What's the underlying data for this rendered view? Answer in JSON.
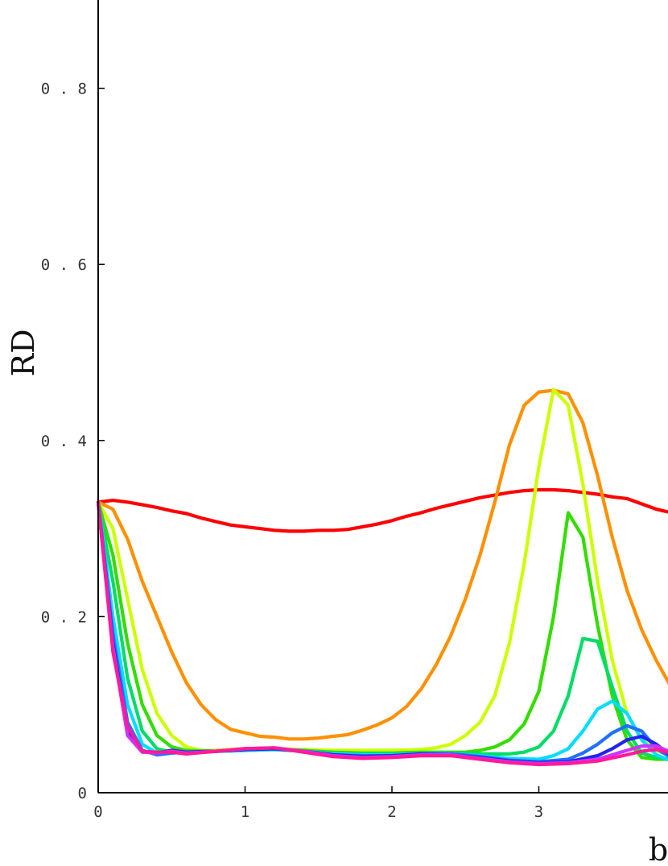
{
  "chart_data": {
    "type": "line",
    "title": "",
    "xlabel": "b",
    "ylabel": "RD",
    "xlim": [
      0,
      4.0
    ],
    "ylim": [
      0,
      1.0
    ],
    "x_ticks": [
      "0",
      "1",
      "2",
      "3"
    ],
    "y_ticks": [
      "0",
      "0.2",
      "0.4",
      "0.6",
      "0.8"
    ],
    "grid": false,
    "legend": "none",
    "series": [
      {
        "color": "#ff0000",
        "points": [
          [
            0,
            0.33
          ],
          [
            0.1,
            0.332
          ],
          [
            0.2,
            0.33
          ],
          [
            0.3,
            0.327
          ],
          [
            0.4,
            0.324
          ],
          [
            0.5,
            0.32
          ],
          [
            0.6,
            0.317
          ],
          [
            0.7,
            0.312
          ],
          [
            0.8,
            0.308
          ],
          [
            0.9,
            0.304
          ],
          [
            1.0,
            0.302
          ],
          [
            1.1,
            0.3
          ],
          [
            1.2,
            0.298
          ],
          [
            1.3,
            0.297
          ],
          [
            1.4,
            0.297
          ],
          [
            1.5,
            0.298
          ],
          [
            1.6,
            0.298
          ],
          [
            1.7,
            0.299
          ],
          [
            1.8,
            0.302
          ],
          [
            1.9,
            0.305
          ],
          [
            2.0,
            0.309
          ],
          [
            2.1,
            0.314
          ],
          [
            2.2,
            0.318
          ],
          [
            2.3,
            0.323
          ],
          [
            2.4,
            0.327
          ],
          [
            2.5,
            0.331
          ],
          [
            2.6,
            0.335
          ],
          [
            2.7,
            0.338
          ],
          [
            2.8,
            0.341
          ],
          [
            2.9,
            0.343
          ],
          [
            3.0,
            0.344
          ],
          [
            3.1,
            0.344
          ],
          [
            3.2,
            0.343
          ],
          [
            3.3,
            0.341
          ],
          [
            3.4,
            0.339
          ],
          [
            3.5,
            0.336
          ],
          [
            3.6,
            0.334
          ],
          [
            3.7,
            0.328
          ],
          [
            3.8,
            0.322
          ],
          [
            3.9,
            0.318
          ],
          [
            4.0,
            0.315
          ]
        ]
      },
      {
        "color": "#ff9000",
        "points": [
          [
            0,
            0.33
          ],
          [
            0.1,
            0.322
          ],
          [
            0.2,
            0.288
          ],
          [
            0.3,
            0.24
          ],
          [
            0.4,
            0.2
          ],
          [
            0.5,
            0.16
          ],
          [
            0.6,
            0.125
          ],
          [
            0.7,
            0.1
          ],
          [
            0.8,
            0.083
          ],
          [
            0.9,
            0.072
          ],
          [
            1.0,
            0.068
          ],
          [
            1.1,
            0.064
          ],
          [
            1.2,
            0.063
          ],
          [
            1.3,
            0.061
          ],
          [
            1.4,
            0.061
          ],
          [
            1.5,
            0.062
          ],
          [
            1.6,
            0.064
          ],
          [
            1.7,
            0.066
          ],
          [
            1.8,
            0.071
          ],
          [
            1.9,
            0.077
          ],
          [
            2.0,
            0.085
          ],
          [
            2.1,
            0.098
          ],
          [
            2.2,
            0.118
          ],
          [
            2.3,
            0.145
          ],
          [
            2.4,
            0.178
          ],
          [
            2.5,
            0.22
          ],
          [
            2.6,
            0.27
          ],
          [
            2.7,
            0.33
          ],
          [
            2.8,
            0.395
          ],
          [
            2.9,
            0.44
          ],
          [
            3.0,
            0.455
          ],
          [
            3.1,
            0.457
          ],
          [
            3.2,
            0.453
          ],
          [
            3.3,
            0.42
          ],
          [
            3.4,
            0.36
          ],
          [
            3.5,
            0.29
          ],
          [
            3.6,
            0.23
          ],
          [
            3.7,
            0.185
          ],
          [
            3.8,
            0.15
          ],
          [
            3.9,
            0.12
          ],
          [
            4.0,
            0.1
          ]
        ]
      },
      {
        "color": "#ccff00",
        "points": [
          [
            0,
            0.33
          ],
          [
            0.1,
            0.3
          ],
          [
            0.2,
            0.22
          ],
          [
            0.3,
            0.14
          ],
          [
            0.4,
            0.09
          ],
          [
            0.5,
            0.065
          ],
          [
            0.6,
            0.052
          ],
          [
            0.7,
            0.048
          ],
          [
            0.8,
            0.048
          ],
          [
            0.9,
            0.049
          ],
          [
            1.0,
            0.05
          ],
          [
            1.2,
            0.05
          ],
          [
            1.4,
            0.049
          ],
          [
            1.6,
            0.048
          ],
          [
            1.8,
            0.048
          ],
          [
            2.0,
            0.048
          ],
          [
            2.2,
            0.049
          ],
          [
            2.3,
            0.051
          ],
          [
            2.4,
            0.055
          ],
          [
            2.5,
            0.065
          ],
          [
            2.6,
            0.08
          ],
          [
            2.7,
            0.11
          ],
          [
            2.8,
            0.17
          ],
          [
            2.9,
            0.26
          ],
          [
            3.0,
            0.37
          ],
          [
            3.1,
            0.458
          ],
          [
            3.2,
            0.44
          ],
          [
            3.3,
            0.35
          ],
          [
            3.4,
            0.24
          ],
          [
            3.5,
            0.15
          ],
          [
            3.6,
            0.09
          ],
          [
            3.7,
            0.06
          ],
          [
            3.8,
            0.048
          ],
          [
            3.9,
            0.042
          ],
          [
            4.0,
            0.04
          ]
        ]
      },
      {
        "color": "#33dd00",
        "points": [
          [
            0,
            0.33
          ],
          [
            0.1,
            0.27
          ],
          [
            0.2,
            0.17
          ],
          [
            0.3,
            0.1
          ],
          [
            0.4,
            0.065
          ],
          [
            0.5,
            0.052
          ],
          [
            0.6,
            0.048
          ],
          [
            0.8,
            0.047
          ],
          [
            1.0,
            0.048
          ],
          [
            1.2,
            0.049
          ],
          [
            1.4,
            0.048
          ],
          [
            1.6,
            0.046
          ],
          [
            1.8,
            0.045
          ],
          [
            2.0,
            0.045
          ],
          [
            2.2,
            0.046
          ],
          [
            2.4,
            0.046
          ],
          [
            2.5,
            0.046
          ],
          [
            2.6,
            0.048
          ],
          [
            2.7,
            0.052
          ],
          [
            2.8,
            0.06
          ],
          [
            2.9,
            0.078
          ],
          [
            3.0,
            0.115
          ],
          [
            3.1,
            0.2
          ],
          [
            3.2,
            0.318
          ],
          [
            3.3,
            0.29
          ],
          [
            3.4,
            0.19
          ],
          [
            3.5,
            0.11
          ],
          [
            3.6,
            0.06
          ],
          [
            3.7,
            0.04
          ],
          [
            3.8,
            0.038
          ],
          [
            3.9,
            0.038
          ],
          [
            4.0,
            0.037
          ]
        ]
      },
      {
        "color": "#00dd66",
        "points": [
          [
            0,
            0.33
          ],
          [
            0.1,
            0.24
          ],
          [
            0.2,
            0.13
          ],
          [
            0.3,
            0.07
          ],
          [
            0.4,
            0.05
          ],
          [
            0.5,
            0.046
          ],
          [
            0.6,
            0.046
          ],
          [
            0.8,
            0.047
          ],
          [
            1.0,
            0.048
          ],
          [
            1.2,
            0.049
          ],
          [
            1.4,
            0.047
          ],
          [
            1.6,
            0.045
          ],
          [
            1.8,
            0.044
          ],
          [
            2.0,
            0.044
          ],
          [
            2.2,
            0.045
          ],
          [
            2.4,
            0.045
          ],
          [
            2.6,
            0.044
          ],
          [
            2.8,
            0.044
          ],
          [
            2.9,
            0.046
          ],
          [
            3.0,
            0.052
          ],
          [
            3.1,
            0.07
          ],
          [
            3.2,
            0.11
          ],
          [
            3.3,
            0.175
          ],
          [
            3.4,
            0.172
          ],
          [
            3.5,
            0.12
          ],
          [
            3.6,
            0.07
          ],
          [
            3.7,
            0.045
          ],
          [
            3.8,
            0.04
          ],
          [
            3.9,
            0.038
          ],
          [
            4.0,
            0.036
          ]
        ]
      },
      {
        "color": "#00ddff",
        "points": [
          [
            0,
            0.33
          ],
          [
            0.1,
            0.2
          ],
          [
            0.2,
            0.1
          ],
          [
            0.3,
            0.055
          ],
          [
            0.4,
            0.045
          ],
          [
            0.5,
            0.045
          ],
          [
            0.6,
            0.046
          ],
          [
            0.8,
            0.047
          ],
          [
            1.0,
            0.048
          ],
          [
            1.2,
            0.049
          ],
          [
            1.4,
            0.047
          ],
          [
            1.6,
            0.044
          ],
          [
            1.8,
            0.043
          ],
          [
            2.0,
            0.043
          ],
          [
            2.2,
            0.044
          ],
          [
            2.4,
            0.044
          ],
          [
            2.6,
            0.042
          ],
          [
            2.8,
            0.039
          ],
          [
            3.0,
            0.038
          ],
          [
            3.1,
            0.042
          ],
          [
            3.2,
            0.05
          ],
          [
            3.3,
            0.07
          ],
          [
            3.4,
            0.095
          ],
          [
            3.5,
            0.104
          ],
          [
            3.6,
            0.09
          ],
          [
            3.7,
            0.06
          ],
          [
            3.8,
            0.043
          ],
          [
            3.9,
            0.036
          ],
          [
            4.0,
            0.033
          ]
        ]
      },
      {
        "color": "#2070ff",
        "points": [
          [
            0,
            0.33
          ],
          [
            0.1,
            0.18
          ],
          [
            0.2,
            0.08
          ],
          [
            0.3,
            0.048
          ],
          [
            0.4,
            0.043
          ],
          [
            0.5,
            0.045
          ],
          [
            0.6,
            0.046
          ],
          [
            0.8,
            0.047
          ],
          [
            1.0,
            0.049
          ],
          [
            1.2,
            0.05
          ],
          [
            1.4,
            0.047
          ],
          [
            1.6,
            0.043
          ],
          [
            1.8,
            0.042
          ],
          [
            2.0,
            0.042
          ],
          [
            2.2,
            0.044
          ],
          [
            2.4,
            0.044
          ],
          [
            2.6,
            0.041
          ],
          [
            2.8,
            0.037
          ],
          [
            3.0,
            0.035
          ],
          [
            3.2,
            0.038
          ],
          [
            3.3,
            0.045
          ],
          [
            3.4,
            0.055
          ],
          [
            3.5,
            0.068
          ],
          [
            3.6,
            0.076
          ],
          [
            3.7,
            0.07
          ],
          [
            3.8,
            0.05
          ],
          [
            3.9,
            0.04
          ],
          [
            4.0,
            0.036
          ]
        ]
      },
      {
        "color": "#2222ee",
        "points": [
          [
            0,
            0.33
          ],
          [
            0.1,
            0.17
          ],
          [
            0.2,
            0.068
          ],
          [
            0.3,
            0.047
          ],
          [
            0.4,
            0.045
          ],
          [
            0.5,
            0.048
          ],
          [
            0.6,
            0.046
          ],
          [
            0.8,
            0.047
          ],
          [
            1.0,
            0.049
          ],
          [
            1.2,
            0.05
          ],
          [
            1.4,
            0.047
          ],
          [
            1.6,
            0.043
          ],
          [
            1.8,
            0.041
          ],
          [
            2.0,
            0.042
          ],
          [
            2.2,
            0.044
          ],
          [
            2.4,
            0.043
          ],
          [
            2.6,
            0.04
          ],
          [
            2.8,
            0.036
          ],
          [
            3.0,
            0.034
          ],
          [
            3.2,
            0.035
          ],
          [
            3.4,
            0.042
          ],
          [
            3.5,
            0.05
          ],
          [
            3.6,
            0.06
          ],
          [
            3.7,
            0.064
          ],
          [
            3.8,
            0.055
          ],
          [
            3.9,
            0.042
          ],
          [
            4.0,
            0.036
          ]
        ]
      },
      {
        "color": "#cc33ff",
        "points": [
          [
            0,
            0.33
          ],
          [
            0.1,
            0.165
          ],
          [
            0.2,
            0.065
          ],
          [
            0.3,
            0.046
          ],
          [
            0.4,
            0.045
          ],
          [
            0.5,
            0.047
          ],
          [
            0.6,
            0.045
          ],
          [
            0.8,
            0.047
          ],
          [
            1.0,
            0.05
          ],
          [
            1.2,
            0.051
          ],
          [
            1.4,
            0.047
          ],
          [
            1.6,
            0.042
          ],
          [
            1.8,
            0.04
          ],
          [
            2.0,
            0.041
          ],
          [
            2.2,
            0.043
          ],
          [
            2.4,
            0.043
          ],
          [
            2.6,
            0.039
          ],
          [
            2.8,
            0.035
          ],
          [
            3.0,
            0.033
          ],
          [
            3.2,
            0.034
          ],
          [
            3.4,
            0.038
          ],
          [
            3.6,
            0.048
          ],
          [
            3.7,
            0.053
          ],
          [
            3.8,
            0.053
          ],
          [
            3.9,
            0.046
          ],
          [
            4.0,
            0.038
          ]
        ]
      },
      {
        "color": "#ff1a9a",
        "points": [
          [
            0,
            0.33
          ],
          [
            0.1,
            0.16
          ],
          [
            0.2,
            0.075
          ],
          [
            0.3,
            0.047
          ],
          [
            0.4,
            0.046
          ],
          [
            0.5,
            0.046
          ],
          [
            0.6,
            0.044
          ],
          [
            0.8,
            0.047
          ],
          [
            1.0,
            0.05
          ],
          [
            1.2,
            0.051
          ],
          [
            1.4,
            0.046
          ],
          [
            1.6,
            0.041
          ],
          [
            1.8,
            0.039
          ],
          [
            2.0,
            0.04
          ],
          [
            2.2,
            0.042
          ],
          [
            2.4,
            0.042
          ],
          [
            2.6,
            0.038
          ],
          [
            2.8,
            0.034
          ],
          [
            3.0,
            0.032
          ],
          [
            3.2,
            0.033
          ],
          [
            3.4,
            0.036
          ],
          [
            3.6,
            0.043
          ],
          [
            3.7,
            0.047
          ],
          [
            3.8,
            0.049
          ],
          [
            3.9,
            0.045
          ],
          [
            4.0,
            0.039
          ]
        ]
      }
    ]
  }
}
